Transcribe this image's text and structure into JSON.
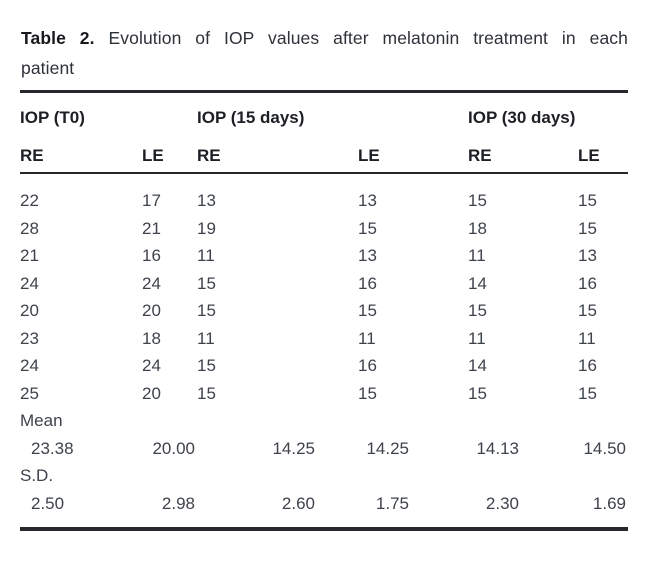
{
  "caption": {
    "label": "Table 2.",
    "line1": "Evolution of IOP values after melatonin treatment in each",
    "line2": "patient"
  },
  "table": {
    "group_headers": [
      "IOP (T0)",
      "IOP (15 days)",
      "IOP (30 days)"
    ],
    "col_headers": [
      "RE",
      "LE",
      "RE",
      "LE",
      "RE",
      "LE"
    ],
    "rows": [
      [
        22,
        17,
        13,
        13,
        15,
        15
      ],
      [
        28,
        21,
        19,
        15,
        18,
        15
      ],
      [
        21,
        16,
        11,
        13,
        11,
        13
      ],
      [
        24,
        24,
        15,
        16,
        14,
        16
      ],
      [
        20,
        20,
        15,
        15,
        15,
        15
      ],
      [
        23,
        18,
        11,
        11,
        11,
        11
      ],
      [
        24,
        24,
        15,
        16,
        14,
        16
      ],
      [
        25,
        20,
        15,
        15,
        15,
        15
      ]
    ],
    "mean_label": "Mean",
    "mean_values": [
      "23.38",
      "20.00",
      "14.25",
      "14.25",
      "14.13",
      "14.50"
    ],
    "sd_label": "S.D.",
    "sd_values": [
      "2.50",
      "2.98",
      "2.60",
      "1.75",
      "2.30",
      "1.69"
    ]
  }
}
